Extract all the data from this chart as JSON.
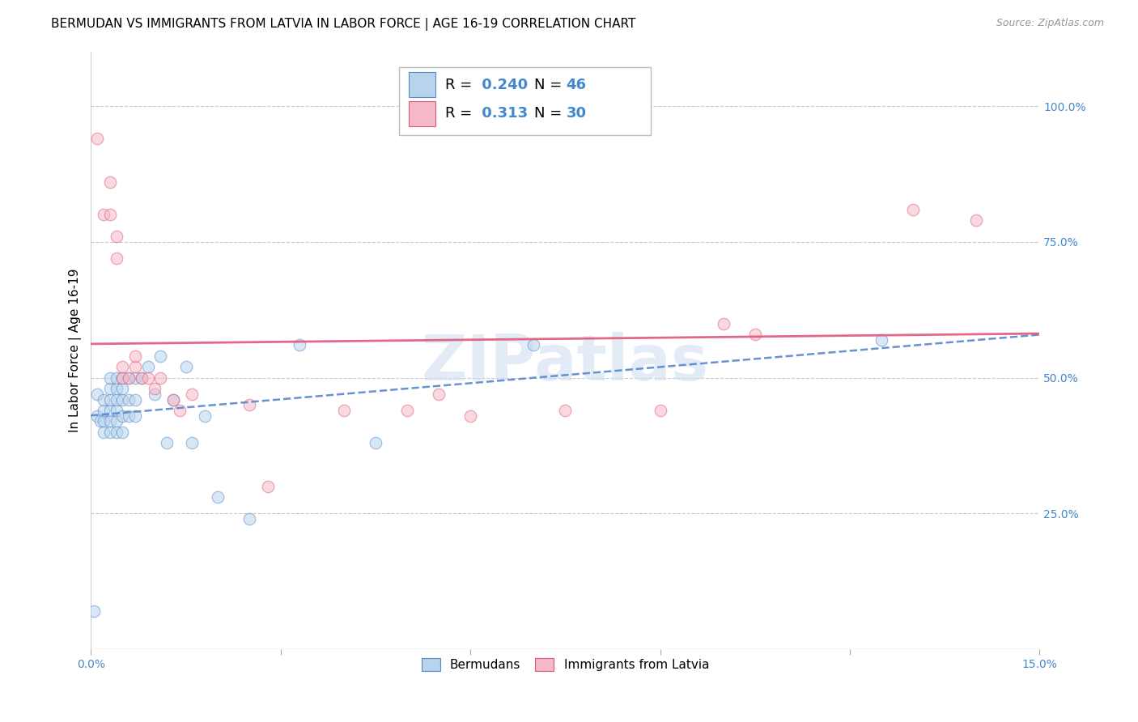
{
  "title": "BERMUDAN VS IMMIGRANTS FROM LATVIA IN LABOR FORCE | AGE 16-19 CORRELATION CHART",
  "source": "Source: ZipAtlas.com",
  "ylabel": "In Labor Force | Age 16-19",
  "watermark": "ZIPatlas",
  "xlim": [
    0.0,
    0.15
  ],
  "ylim": [
    0.0,
    1.1
  ],
  "xtick_positions": [
    0.0,
    0.03,
    0.06,
    0.09,
    0.12,
    0.15
  ],
  "xticklabels": [
    "0.0%",
    "",
    "",
    "",
    "",
    "15.0%"
  ],
  "ytick_positions": [
    0.0,
    0.25,
    0.5,
    0.75,
    1.0
  ],
  "yticklabels_right": [
    "",
    "25.0%",
    "50.0%",
    "75.0%",
    "100.0%"
  ],
  "legend_r_blue": "0.240",
  "legend_n_blue": "46",
  "legend_r_pink": "0.313",
  "legend_n_pink": "30",
  "blue_fill": "#b8d4ec",
  "pink_fill": "#f5b8c8",
  "blue_edge": "#5588cc",
  "pink_edge": "#e05878",
  "blue_line": "#5588cc",
  "pink_line": "#e05878",
  "blue_scatter_x": [
    0.0005,
    0.001,
    0.001,
    0.0015,
    0.002,
    0.002,
    0.002,
    0.002,
    0.003,
    0.003,
    0.003,
    0.003,
    0.003,
    0.003,
    0.004,
    0.004,
    0.004,
    0.004,
    0.004,
    0.004,
    0.005,
    0.005,
    0.005,
    0.005,
    0.005,
    0.006,
    0.006,
    0.006,
    0.007,
    0.007,
    0.007,
    0.008,
    0.009,
    0.01,
    0.011,
    0.012,
    0.013,
    0.015,
    0.016,
    0.018,
    0.02,
    0.025,
    0.033,
    0.045,
    0.07,
    0.125
  ],
  "blue_scatter_y": [
    0.07,
    0.43,
    0.47,
    0.42,
    0.4,
    0.42,
    0.44,
    0.46,
    0.4,
    0.42,
    0.44,
    0.46,
    0.48,
    0.5,
    0.4,
    0.42,
    0.44,
    0.46,
    0.48,
    0.5,
    0.4,
    0.43,
    0.46,
    0.48,
    0.5,
    0.43,
    0.46,
    0.5,
    0.43,
    0.46,
    0.5,
    0.5,
    0.52,
    0.47,
    0.54,
    0.38,
    0.46,
    0.52,
    0.38,
    0.43,
    0.28,
    0.24,
    0.56,
    0.38,
    0.56,
    0.57
  ],
  "pink_scatter_x": [
    0.001,
    0.002,
    0.003,
    0.003,
    0.004,
    0.004,
    0.005,
    0.005,
    0.006,
    0.007,
    0.007,
    0.008,
    0.009,
    0.01,
    0.011,
    0.013,
    0.014,
    0.016,
    0.025,
    0.028,
    0.04,
    0.05,
    0.055,
    0.06,
    0.075,
    0.09,
    0.1,
    0.105,
    0.13,
    0.14
  ],
  "pink_scatter_y": [
    0.94,
    0.8,
    0.8,
    0.86,
    0.72,
    0.76,
    0.5,
    0.52,
    0.5,
    0.52,
    0.54,
    0.5,
    0.5,
    0.48,
    0.5,
    0.46,
    0.44,
    0.47,
    0.45,
    0.3,
    0.44,
    0.44,
    0.47,
    0.43,
    0.44,
    0.44,
    0.6,
    0.58,
    0.81,
    0.79
  ],
  "title_fontsize": 11,
  "axis_label_fontsize": 11,
  "tick_fontsize": 10,
  "scatter_size": 110,
  "scatter_alpha": 0.55,
  "grid_color": "#cccccc",
  "bg_color": "#ffffff"
}
